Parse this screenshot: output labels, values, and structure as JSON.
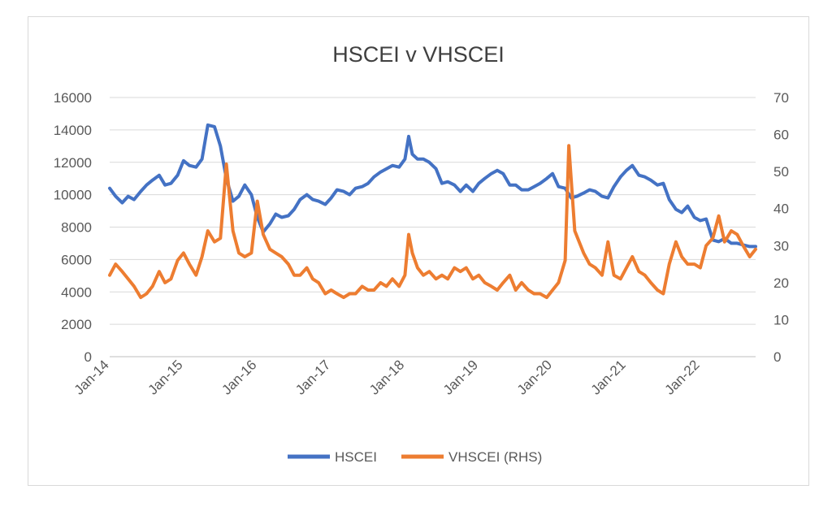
{
  "chart_data": {
    "type": "line",
    "title": "HSCEI v VHSCEI",
    "x_tick_labels": [
      "Jan-14",
      "Jan-15",
      "Jan-16",
      "Jan-17",
      "Jan-18",
      "Jan-19",
      "Jan-20",
      "Jan-21",
      "Jan-22"
    ],
    "x_range": [
      2014.0,
      2022.75
    ],
    "y_left": {
      "ticks": [
        0,
        2000,
        4000,
        6000,
        8000,
        10000,
        12000,
        14000,
        16000
      ],
      "range": [
        0,
        16000
      ]
    },
    "y_right": {
      "ticks": [
        0,
        10,
        20,
        30,
        40,
        50,
        60,
        70
      ],
      "range": [
        0,
        70
      ]
    },
    "gridlines": true,
    "legend_position": "bottom",
    "series": [
      {
        "name": "HSCEI",
        "axis": "left",
        "color": "#4472c4",
        "points": [
          [
            2014.0,
            10400
          ],
          [
            2014.08,
            9900
          ],
          [
            2014.17,
            9500
          ],
          [
            2014.25,
            9900
          ],
          [
            2014.33,
            9700
          ],
          [
            2014.42,
            10200
          ],
          [
            2014.5,
            10600
          ],
          [
            2014.58,
            10900
          ],
          [
            2014.67,
            11200
          ],
          [
            2014.75,
            10600
          ],
          [
            2014.83,
            10700
          ],
          [
            2014.92,
            11200
          ],
          [
            2015.0,
            12100
          ],
          [
            2015.08,
            11800
          ],
          [
            2015.17,
            11700
          ],
          [
            2015.25,
            12200
          ],
          [
            2015.33,
            14300
          ],
          [
            2015.42,
            14200
          ],
          [
            2015.5,
            13000
          ],
          [
            2015.58,
            11000
          ],
          [
            2015.67,
            9600
          ],
          [
            2015.75,
            9900
          ],
          [
            2015.83,
            10600
          ],
          [
            2015.92,
            10000
          ],
          [
            2016.0,
            8600
          ],
          [
            2016.08,
            7700
          ],
          [
            2016.17,
            8200
          ],
          [
            2016.25,
            8800
          ],
          [
            2016.33,
            8600
          ],
          [
            2016.42,
            8700
          ],
          [
            2016.5,
            9100
          ],
          [
            2016.58,
            9700
          ],
          [
            2016.67,
            10000
          ],
          [
            2016.75,
            9700
          ],
          [
            2016.83,
            9600
          ],
          [
            2016.92,
            9400
          ],
          [
            2017.0,
            9800
          ],
          [
            2017.08,
            10300
          ],
          [
            2017.17,
            10200
          ],
          [
            2017.25,
            10000
          ],
          [
            2017.33,
            10400
          ],
          [
            2017.42,
            10500
          ],
          [
            2017.5,
            10700
          ],
          [
            2017.58,
            11100
          ],
          [
            2017.67,
            11400
          ],
          [
            2017.75,
            11600
          ],
          [
            2017.83,
            11800
          ],
          [
            2017.92,
            11700
          ],
          [
            2018.0,
            12200
          ],
          [
            2018.05,
            13600
          ],
          [
            2018.1,
            12500
          ],
          [
            2018.17,
            12200
          ],
          [
            2018.25,
            12200
          ],
          [
            2018.33,
            12000
          ],
          [
            2018.42,
            11600
          ],
          [
            2018.5,
            10700
          ],
          [
            2018.58,
            10800
          ],
          [
            2018.67,
            10600
          ],
          [
            2018.75,
            10200
          ],
          [
            2018.83,
            10600
          ],
          [
            2018.92,
            10200
          ],
          [
            2019.0,
            10700
          ],
          [
            2019.08,
            11000
          ],
          [
            2019.17,
            11300
          ],
          [
            2019.25,
            11500
          ],
          [
            2019.33,
            11300
          ],
          [
            2019.42,
            10600
          ],
          [
            2019.5,
            10600
          ],
          [
            2019.58,
            10300
          ],
          [
            2019.67,
            10300
          ],
          [
            2019.75,
            10500
          ],
          [
            2019.83,
            10700
          ],
          [
            2019.92,
            11000
          ],
          [
            2020.0,
            11300
          ],
          [
            2020.08,
            10500
          ],
          [
            2020.17,
            10400
          ],
          [
            2020.25,
            9800
          ],
          [
            2020.33,
            9900
          ],
          [
            2020.42,
            10100
          ],
          [
            2020.5,
            10300
          ],
          [
            2020.58,
            10200
          ],
          [
            2020.67,
            9900
          ],
          [
            2020.75,
            9800
          ],
          [
            2020.83,
            10500
          ],
          [
            2020.92,
            11100
          ],
          [
            2021.0,
            11500
          ],
          [
            2021.08,
            11800
          ],
          [
            2021.17,
            11200
          ],
          [
            2021.25,
            11100
          ],
          [
            2021.33,
            10900
          ],
          [
            2021.42,
            10600
          ],
          [
            2021.5,
            10700
          ],
          [
            2021.58,
            9700
          ],
          [
            2021.67,
            9100
          ],
          [
            2021.75,
            8900
          ],
          [
            2021.83,
            9300
          ],
          [
            2021.92,
            8600
          ],
          [
            2022.0,
            8400
          ],
          [
            2022.08,
            8500
          ],
          [
            2022.17,
            7200
          ],
          [
            2022.25,
            7100
          ],
          [
            2022.33,
            7300
          ],
          [
            2022.42,
            7000
          ],
          [
            2022.5,
            7000
          ],
          [
            2022.58,
            6900
          ],
          [
            2022.67,
            6800
          ],
          [
            2022.75,
            6800
          ]
        ]
      },
      {
        "name": "VHSCEI (RHS)",
        "axis": "right",
        "color": "#ed7d31",
        "points": [
          [
            2014.0,
            22
          ],
          [
            2014.08,
            25
          ],
          [
            2014.17,
            23
          ],
          [
            2014.25,
            21
          ],
          [
            2014.33,
            19
          ],
          [
            2014.42,
            16
          ],
          [
            2014.5,
            17
          ],
          [
            2014.58,
            19
          ],
          [
            2014.67,
            23
          ],
          [
            2014.75,
            20
          ],
          [
            2014.83,
            21
          ],
          [
            2014.92,
            26
          ],
          [
            2015.0,
            28
          ],
          [
            2015.08,
            25
          ],
          [
            2015.17,
            22
          ],
          [
            2015.25,
            27
          ],
          [
            2015.33,
            34
          ],
          [
            2015.42,
            31
          ],
          [
            2015.5,
            32
          ],
          [
            2015.58,
            52
          ],
          [
            2015.67,
            34
          ],
          [
            2015.75,
            28
          ],
          [
            2015.83,
            27
          ],
          [
            2015.92,
            28
          ],
          [
            2016.0,
            42
          ],
          [
            2016.08,
            33
          ],
          [
            2016.17,
            29
          ],
          [
            2016.25,
            28
          ],
          [
            2016.33,
            27
          ],
          [
            2016.42,
            25
          ],
          [
            2016.5,
            22
          ],
          [
            2016.58,
            22
          ],
          [
            2016.67,
            24
          ],
          [
            2016.75,
            21
          ],
          [
            2016.83,
            20
          ],
          [
            2016.92,
            17
          ],
          [
            2017.0,
            18
          ],
          [
            2017.08,
            17
          ],
          [
            2017.17,
            16
          ],
          [
            2017.25,
            17
          ],
          [
            2017.33,
            17
          ],
          [
            2017.42,
            19
          ],
          [
            2017.5,
            18
          ],
          [
            2017.58,
            18
          ],
          [
            2017.67,
            20
          ],
          [
            2017.75,
            19
          ],
          [
            2017.83,
            21
          ],
          [
            2017.92,
            19
          ],
          [
            2018.0,
            22
          ],
          [
            2018.05,
            33
          ],
          [
            2018.1,
            28
          ],
          [
            2018.17,
            24
          ],
          [
            2018.25,
            22
          ],
          [
            2018.33,
            23
          ],
          [
            2018.42,
            21
          ],
          [
            2018.5,
            22
          ],
          [
            2018.58,
            21
          ],
          [
            2018.67,
            24
          ],
          [
            2018.75,
            23
          ],
          [
            2018.83,
            24
          ],
          [
            2018.92,
            21
          ],
          [
            2019.0,
            22
          ],
          [
            2019.08,
            20
          ],
          [
            2019.17,
            19
          ],
          [
            2019.25,
            18
          ],
          [
            2019.33,
            20
          ],
          [
            2019.42,
            22
          ],
          [
            2019.5,
            18
          ],
          [
            2019.58,
            20
          ],
          [
            2019.67,
            18
          ],
          [
            2019.75,
            17
          ],
          [
            2019.83,
            17
          ],
          [
            2019.92,
            16
          ],
          [
            2020.0,
            18
          ],
          [
            2020.08,
            20
          ],
          [
            2020.17,
            26
          ],
          [
            2020.22,
            57
          ],
          [
            2020.3,
            34
          ],
          [
            2020.42,
            28
          ],
          [
            2020.5,
            25
          ],
          [
            2020.58,
            24
          ],
          [
            2020.67,
            22
          ],
          [
            2020.75,
            31
          ],
          [
            2020.83,
            22
          ],
          [
            2020.92,
            21
          ],
          [
            2021.0,
            24
          ],
          [
            2021.08,
            27
          ],
          [
            2021.17,
            23
          ],
          [
            2021.25,
            22
          ],
          [
            2021.33,
            20
          ],
          [
            2021.42,
            18
          ],
          [
            2021.5,
            17
          ],
          [
            2021.58,
            25
          ],
          [
            2021.67,
            31
          ],
          [
            2021.75,
            27
          ],
          [
            2021.83,
            25
          ],
          [
            2021.92,
            25
          ],
          [
            2022.0,
            24
          ],
          [
            2022.08,
            30
          ],
          [
            2022.17,
            32
          ],
          [
            2022.25,
            38
          ],
          [
            2022.33,
            31
          ],
          [
            2022.42,
            34
          ],
          [
            2022.5,
            33
          ],
          [
            2022.58,
            30
          ],
          [
            2022.67,
            27
          ],
          [
            2022.75,
            29
          ]
        ]
      }
    ]
  }
}
